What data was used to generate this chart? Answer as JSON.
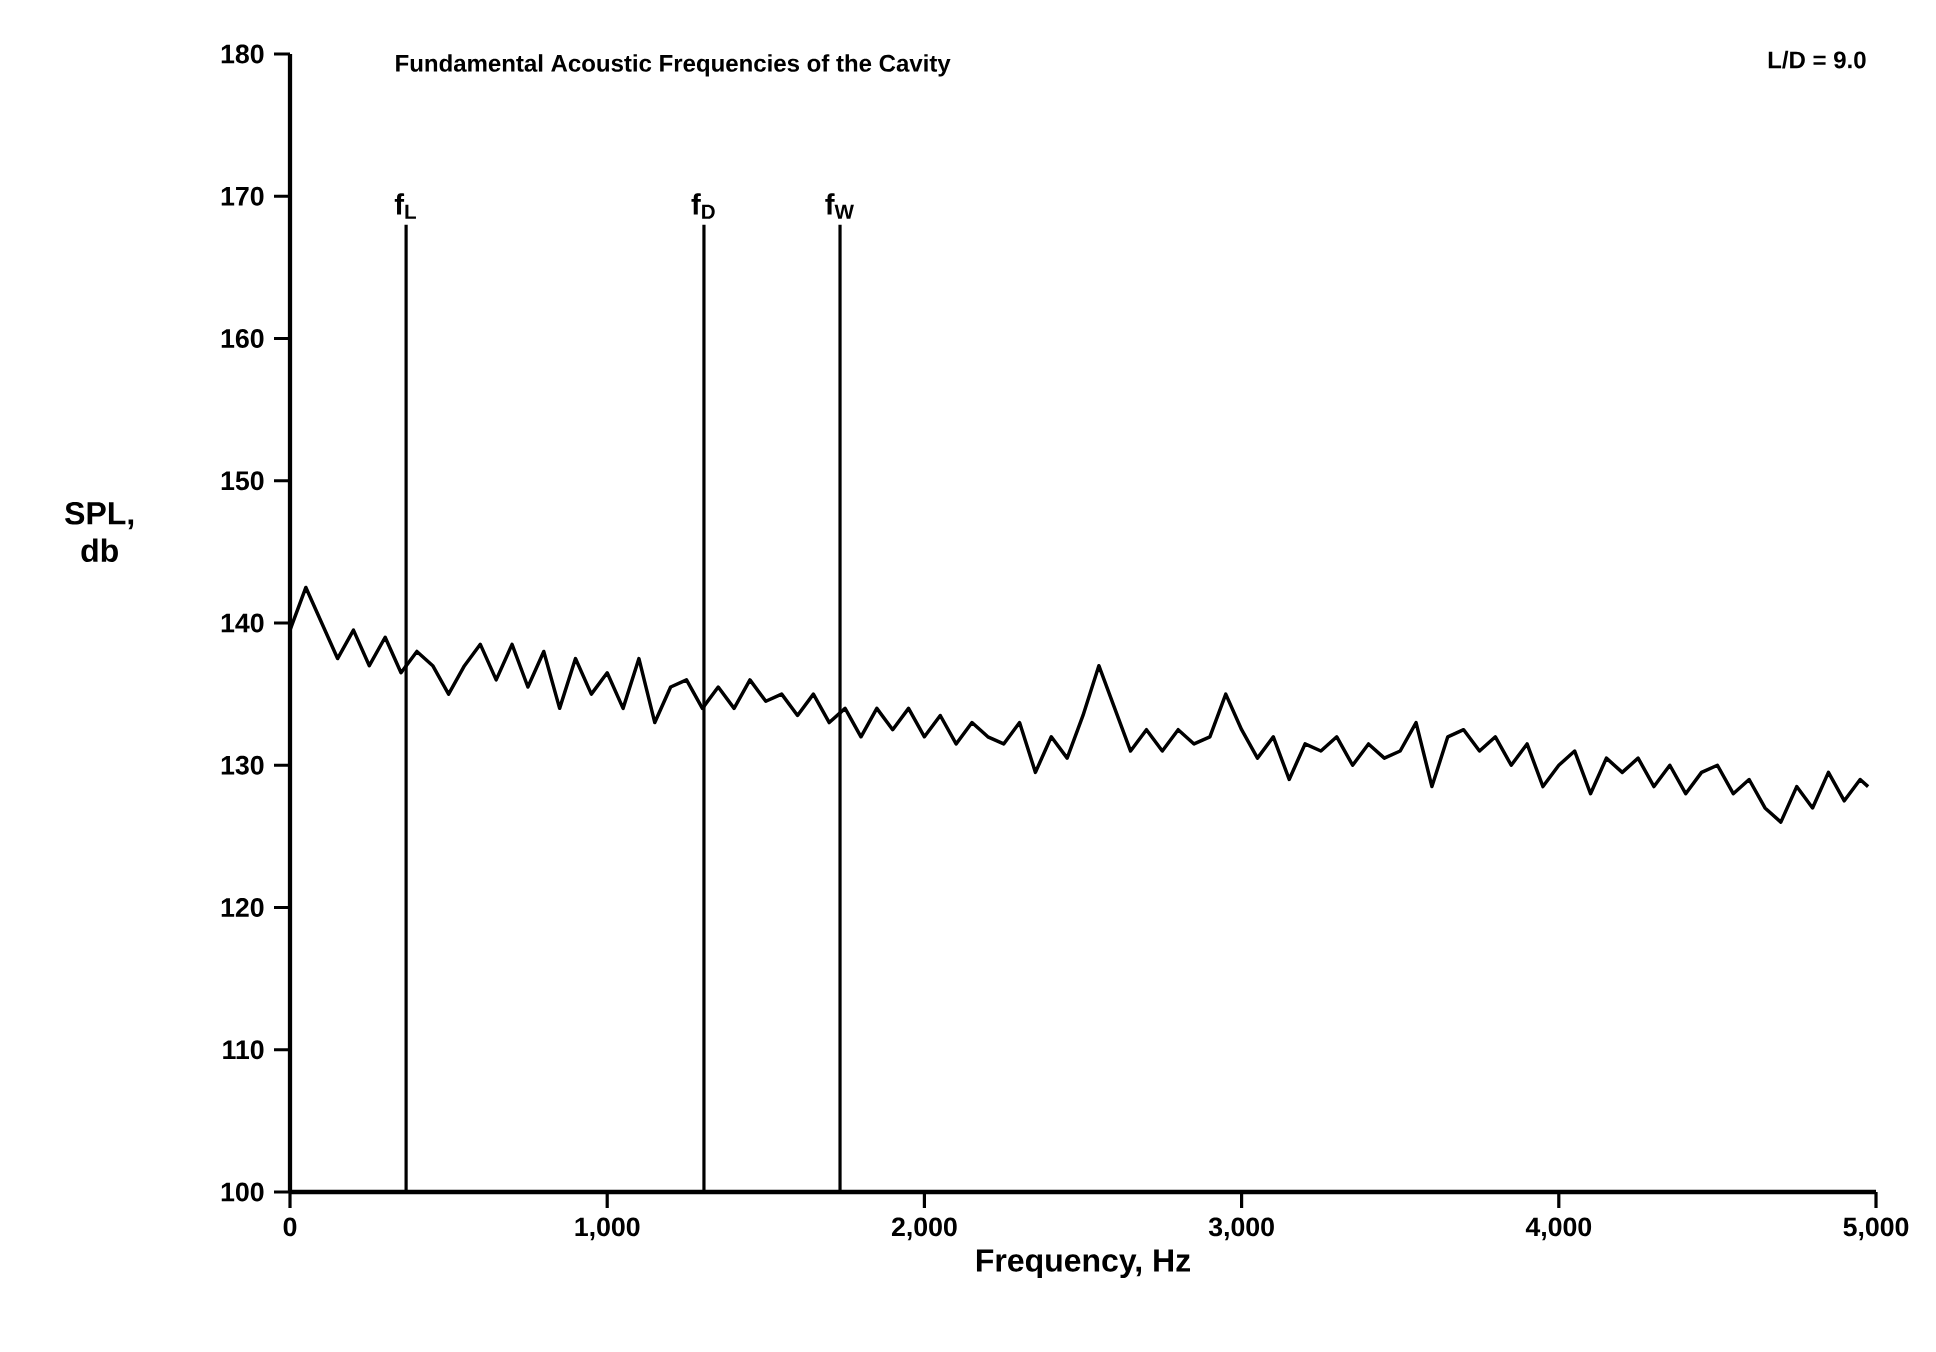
{
  "chart_data": {
    "type": "line",
    "title": "Fundamental Acoustic Frequencies of the Cavity",
    "xlabel": "Frequency, Hz",
    "ylabel": "SPL, db",
    "annotations": [
      "L/D = 9.0"
    ],
    "x": [
      0,
      50,
      100,
      150,
      200,
      250,
      300,
      350,
      400,
      450,
      500,
      550,
      600,
      650,
      700,
      750,
      800,
      850,
      900,
      950,
      1000,
      1050,
      1100,
      1150,
      1200,
      1250,
      1300,
      1350,
      1400,
      1450,
      1500,
      1550,
      1600,
      1650,
      1700,
      1750,
      1800,
      1850,
      1900,
      1950,
      2000,
      2050,
      2100,
      2150,
      2200,
      2250,
      2300,
      2350,
      2400,
      2450,
      2500,
      2550,
      2600,
      2650,
      2700,
      2750,
      2800,
      2850,
      2900,
      2950,
      3000,
      3050,
      3100,
      3150,
      3200,
      3250,
      3300,
      3350,
      3400,
      3450,
      3500,
      3550,
      3600,
      3650,
      3700,
      3750,
      3800,
      3850,
      3900,
      3950,
      4000,
      4050,
      4100,
      4150,
      4200,
      4250,
      4300,
      4350,
      4400,
      4450,
      4500,
      4550,
      4600,
      4650,
      4700,
      4750,
      4800,
      4850,
      4900,
      4950,
      4975
    ],
    "series": [
      {
        "color": "#000000",
        "values": [
          139.5,
          142.5,
          140,
          137.5,
          139.5,
          137,
          139,
          136.5,
          138,
          137,
          135,
          137,
          138.5,
          136,
          138.5,
          135.5,
          138,
          134,
          137.5,
          135,
          136.5,
          134,
          137.5,
          133,
          135.5,
          136,
          134,
          135.5,
          134,
          136,
          134.5,
          135,
          133.5,
          135,
          133,
          134,
          132,
          134,
          132.5,
          134,
          132,
          133.5,
          131.5,
          133,
          132,
          131.5,
          133,
          129.5,
          132,
          130.5,
          133.5,
          137,
          134,
          131,
          132.5,
          131,
          132.5,
          131.5,
          132,
          135,
          132.5,
          130.5,
          132,
          129,
          131.5,
          131,
          132,
          130,
          131.5,
          130.5,
          131,
          133,
          128.5,
          132,
          132.5,
          131,
          132,
          130,
          131.5,
          128.5,
          130,
          131,
          128,
          130.5,
          129.5,
          130.5,
          128.5,
          130,
          128,
          129.5,
          130,
          128,
          129,
          127,
          126,
          128.5,
          127,
          129.5,
          127.5,
          129,
          128.5
        ]
      }
    ],
    "xlim": [
      0,
      5000
    ],
    "ylim": [
      100,
      180
    ],
    "xticks": [
      0,
      {
        "value": 1000,
        "label": "1,000"
      },
      {
        "value": 2000,
        "label": "2,000"
      },
      {
        "value": 3000,
        "label": "3,000"
      },
      {
        "value": 4000,
        "label": "4,000"
      },
      {
        "value": 5000,
        "label": "5,000"
      }
    ],
    "yticks": [
      100,
      110,
      120,
      130,
      140,
      150,
      160,
      170,
      180
    ],
    "ref_lines": [
      {
        "axis": "x",
        "value": 366,
        "label": "f$_{L}$"
      },
      {
        "axis": "x",
        "value": 1305,
        "label": "f$_{D}$"
      },
      {
        "axis": "x",
        "value": 1734,
        "label": "f$_{W}$"
      }
    ],
    "grid": false,
    "marker": "none",
    "line_style": "solid"
  }
}
